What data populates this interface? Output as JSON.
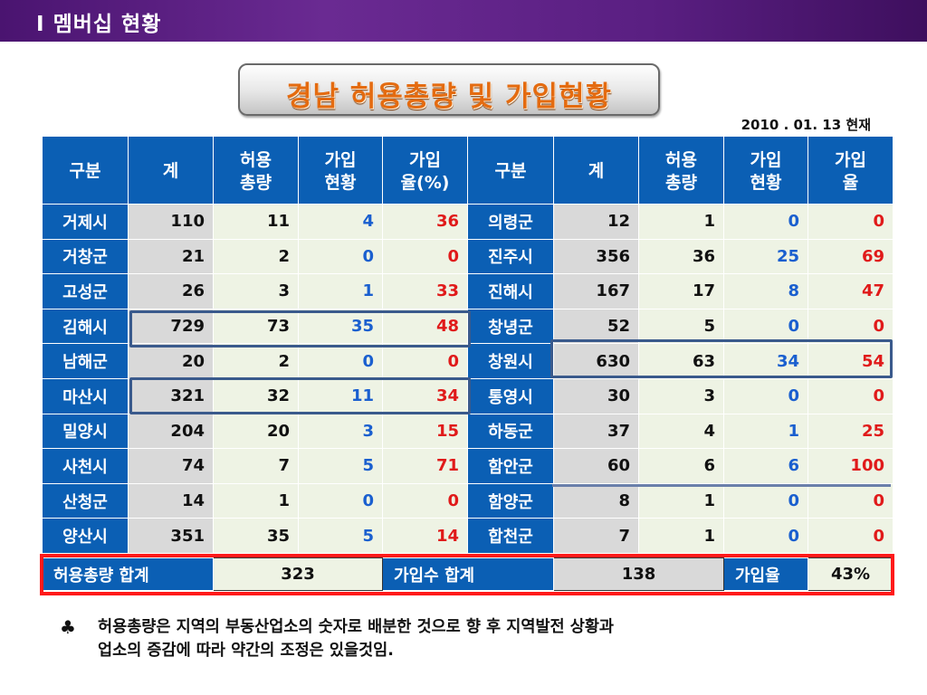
{
  "header": {
    "title": "I  멤버십 현황"
  },
  "slide": {
    "title": "경남 허용총량 및 가입현황",
    "date": "2010 . 01. 13 현재"
  },
  "table": {
    "headers": [
      "구분",
      "계",
      "허용\n총량",
      "가입\n현황",
      "가입\n율(%)",
      "구분",
      "계",
      "허용\n총량",
      "가입\n현황",
      "가입\n율"
    ],
    "rows": [
      {
        "left": [
          "거제시",
          "110",
          "11",
          "4",
          "36"
        ],
        "right": [
          "의령군",
          "12",
          "1",
          "0",
          "0"
        ]
      },
      {
        "left": [
          "거창군",
          "21",
          "2",
          "0",
          "0"
        ],
        "right": [
          "진주시",
          "356",
          "36",
          "25",
          "69"
        ]
      },
      {
        "left": [
          "고성군",
          "26",
          "3",
          "1",
          "33"
        ],
        "right": [
          "진해시",
          "167",
          "17",
          "8",
          "47"
        ]
      },
      {
        "left": [
          "김해시",
          "729",
          "73",
          "35",
          "48"
        ],
        "right": [
          "창녕군",
          "52",
          "5",
          "0",
          "0"
        ]
      },
      {
        "left": [
          "남해군",
          "20",
          "2",
          "0",
          "0"
        ],
        "right": [
          "창원시",
          "630",
          "63",
          "34",
          "54"
        ]
      },
      {
        "left": [
          "마산시",
          "321",
          "32",
          "11",
          "34"
        ],
        "right": [
          "통영시",
          "30",
          "3",
          "0",
          "0"
        ]
      },
      {
        "left": [
          "밀양시",
          "204",
          "20",
          "3",
          "15"
        ],
        "right": [
          "하동군",
          "37",
          "4",
          "1",
          "25"
        ]
      },
      {
        "left": [
          "사천시",
          "74",
          "7",
          "5",
          "71"
        ],
        "right": [
          "함안군",
          "60",
          "6",
          "6",
          "100"
        ]
      },
      {
        "left": [
          "산청군",
          "14",
          "1",
          "0",
          "0"
        ],
        "right": [
          "함양군",
          "8",
          "1",
          "0",
          "0"
        ]
      },
      {
        "left": [
          "양산시",
          "351",
          "35",
          "5",
          "14"
        ],
        "right": [
          "합천군",
          "7",
          "1",
          "0",
          "0"
        ]
      }
    ]
  },
  "summary": {
    "allow_label": "허용총량 합계",
    "allow_value": "323",
    "join_label": "가입수 합계",
    "join_value": "138",
    "rate_label": "가입율",
    "rate_value": "43%"
  },
  "note": {
    "bullet": "♣",
    "line1": "허용총량은 지역의 부동산업소의 숫자로 배분한 것으로  향 후 지역발전 상황과",
    "line2": "업소의 증감에 따라 약간의 조정은 있을것임."
  },
  "colors": {
    "header_purple": "#5a1f82",
    "cell_blue": "#0b5fb4",
    "title_orange": "#e46b10",
    "join_blue": "#1a5fcf",
    "rate_red": "#e01a1a",
    "highlight_red": "#ff1a1a"
  }
}
